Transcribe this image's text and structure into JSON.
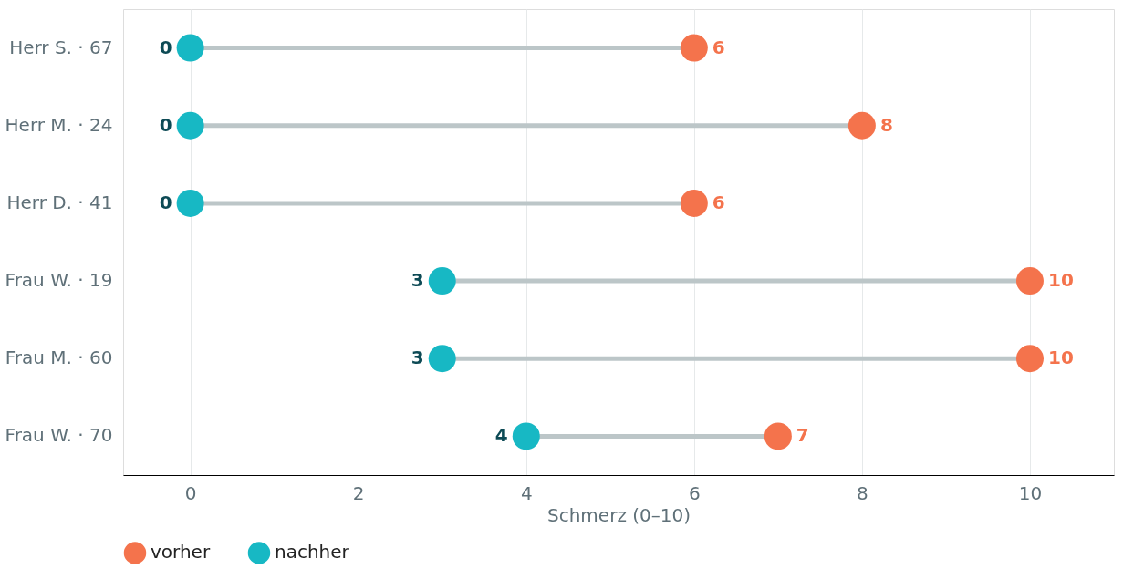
{
  "chart_data": {
    "type": "lollipop",
    "orientation": "horizontal",
    "xlabel": "Schmerz (0–10)",
    "categories": [
      "Herr S. · 67",
      "Herr M. · 24",
      "Herr D. · 41",
      "Frau W. · 19",
      "Frau M. · 60",
      "Frau W. · 70"
    ],
    "series": [
      {
        "name": "vorher",
        "color": "#f4734c",
        "values": [
          6,
          8,
          6,
          10,
          10,
          7
        ]
      },
      {
        "name": "nachher",
        "color": "#17b8c4",
        "values": [
          0,
          0,
          0,
          3,
          3,
          4
        ]
      }
    ],
    "xlim": [
      -0.8,
      11
    ],
    "xticks": [
      0,
      2,
      4,
      6,
      8,
      10
    ],
    "grid": "x",
    "legend": "bottom",
    "data_labels": true,
    "marker": "circle"
  }
}
